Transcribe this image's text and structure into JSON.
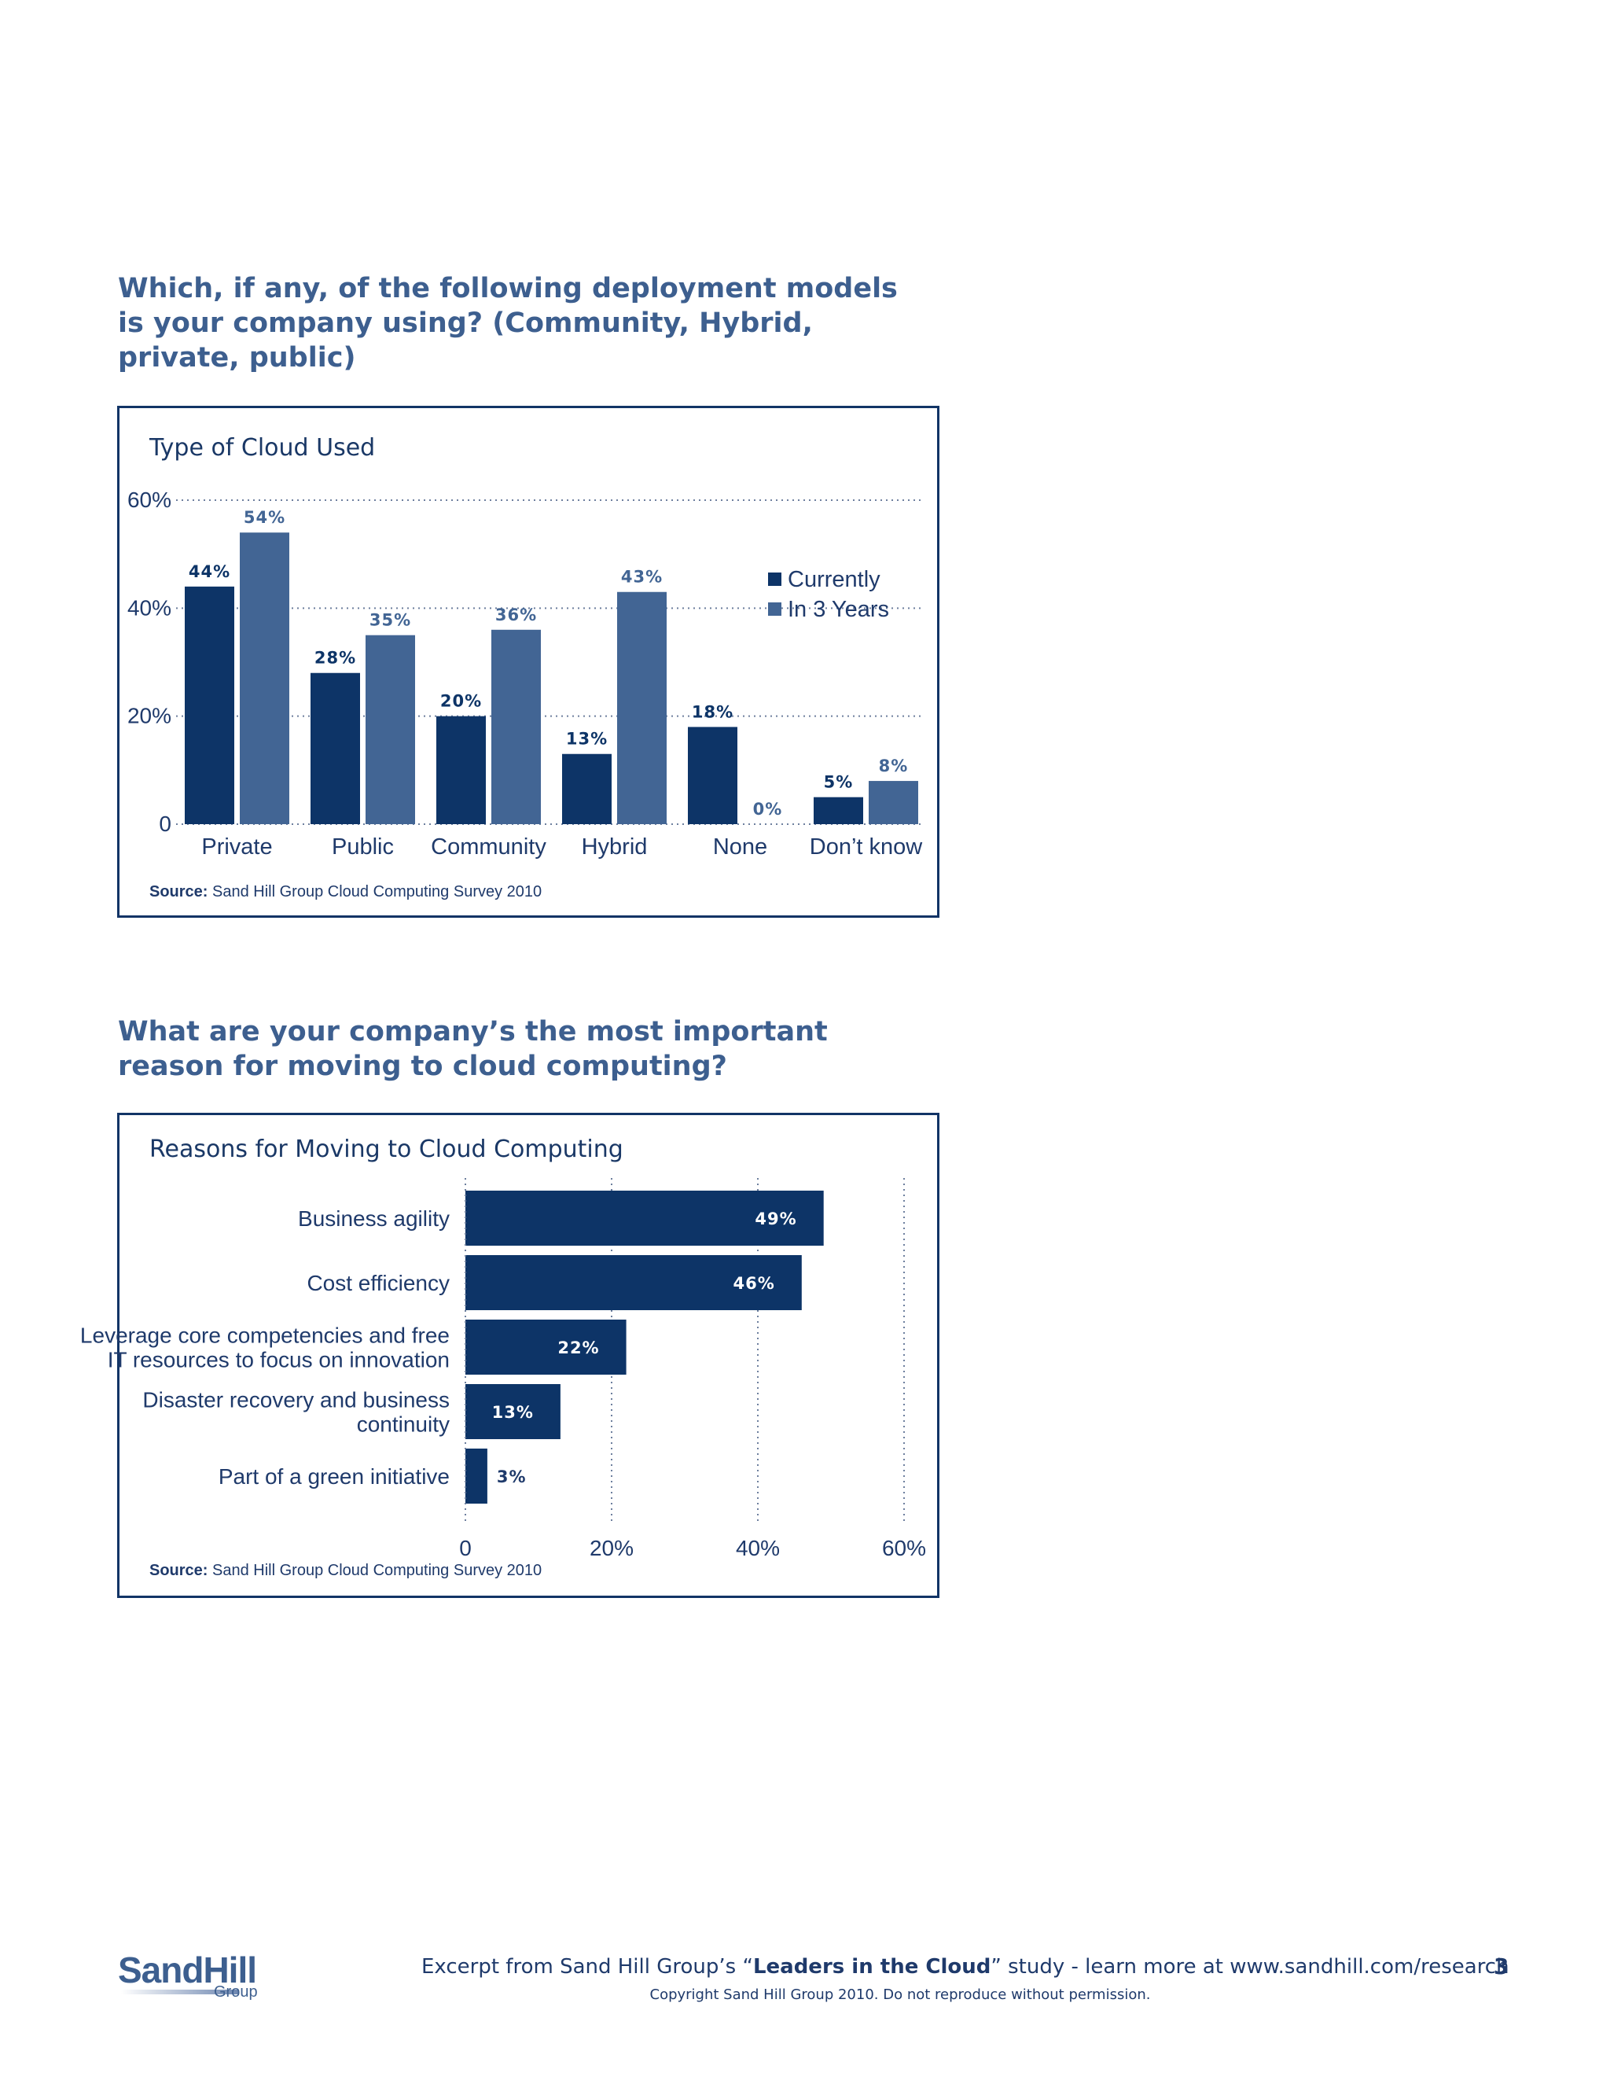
{
  "question1": "Which, if any, of the following deployment models\nis your company using? (Community, Hybrid,\nprivate, public)",
  "question2": "What are your company’s the most important\nreason for moving to cloud computing?",
  "source_label": "Source:",
  "source_text": "Sand Hill Group Cloud Computing Survey 2010",
  "chart_data": [
    {
      "type": "bar",
      "title": "Type of Cloud Used",
      "categories": [
        "Private",
        "Public",
        "Community",
        "Hybrid",
        "None",
        "Don’t know"
      ],
      "series": [
        {
          "name": "Currently",
          "values": [
            44,
            28,
            20,
            13,
            18,
            5
          ],
          "color": "#0d3467"
        },
        {
          "name": "In 3 Years",
          "values": [
            54,
            35,
            36,
            43,
            0,
            8
          ],
          "color": "#426594"
        }
      ],
      "value_labels": {
        "Currently": [
          "44%",
          "28%",
          "20%",
          "13%",
          "18%",
          "5%"
        ],
        "In 3 Years": [
          "54%",
          "35%",
          "36%",
          "43%",
          "0%",
          "8%"
        ]
      },
      "ylim": [
        0,
        60
      ],
      "yticks": [
        0,
        20,
        40,
        60
      ],
      "ytick_labels": [
        "0",
        "20%",
        "40%",
        "60%"
      ],
      "grid": true,
      "legend": "top-right"
    },
    {
      "type": "bar",
      "orientation": "horizontal",
      "title": "Reasons for Moving to Cloud Computing",
      "categories": [
        "Business agility",
        "Cost efficiency",
        "Leverage core competencies and free\nIT resources to focus on innovation",
        "Disaster recovery and business\ncontinuity",
        "Part of a green initiative"
      ],
      "values": [
        49,
        46,
        22,
        13,
        3
      ],
      "value_labels": [
        "49%",
        "46%",
        "22%",
        "13%",
        "3%"
      ],
      "color": "#0d3467",
      "xlim": [
        0,
        60
      ],
      "xticks": [
        0,
        20,
        40,
        60
      ],
      "xtick_labels": [
        "0",
        "20%",
        "40%",
        "60%"
      ],
      "grid": true
    }
  ],
  "footer": {
    "logo_main": "SandHill",
    "logo_sub": "Group",
    "excerpt_prefix": "Excerpt from Sand Hill Group’s “",
    "excerpt_bold": "Leaders in the Cloud",
    "excerpt_suffix": "” study - learn more at www.sandhill.com/research",
    "copyright": "Copyright Sand Hill Group 2010. Do not reproduce without permission.",
    "page_number": "3"
  }
}
